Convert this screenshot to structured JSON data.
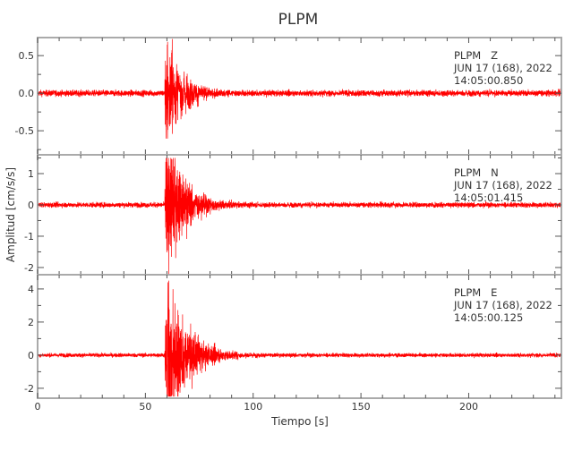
{
  "chart_data": {
    "type": "line",
    "title": "PLPM",
    "xlabel": "Tiempo [s]",
    "ylabel": "Amplitud [cm/s/s]",
    "xlim": [
      0,
      243
    ],
    "x_ticks": [
      0,
      50,
      100,
      150,
      200
    ],
    "x_tick_labels": [
      "0",
      "50",
      "100",
      "150",
      "200"
    ],
    "grid": false,
    "line_color": "#ff0000",
    "panels": [
      {
        "station": "PLPM",
        "component": "Z",
        "label_line1": "PLPM   Z",
        "label_line2": "JUN 17 (168), 2022",
        "label_line3": "14:05:00.850",
        "ylim": [
          -0.82,
          0.74
        ],
        "y_ticks": [
          0.5,
          0.0,
          -0.5
        ],
        "y_tick_labels": [
          "0.5",
          "0.0",
          "-0.5"
        ],
        "onset_s": 59,
        "peak_max": 0.73,
        "peak_min": -0.8,
        "noise_level": 0.02,
        "coda_end_s": 90
      },
      {
        "station": "PLPM",
        "component": "N",
        "label_line1": "PLPM   N",
        "label_line2": "JUN 17 (168), 2022",
        "label_line3": "14:05:01.415",
        "ylim": [
          -2.23,
          1.6
        ],
        "y_ticks": [
          1,
          0,
          -1,
          -2
        ],
        "y_tick_labels": [
          "1",
          "0",
          "-1",
          "-2"
        ],
        "onset_s": 59,
        "peak_max": 1.5,
        "peak_min": -2.2,
        "noise_level": 0.04,
        "coda_end_s": 95
      },
      {
        "station": "PLPM",
        "component": "E",
        "label_line1": "PLPM   E",
        "label_line2": "JUN 17 (168), 2022",
        "label_line3": "14:05:00.125",
        "ylim": [
          -2.6,
          4.86
        ],
        "y_ticks": [
          4,
          2,
          0,
          -2
        ],
        "y_tick_labels": [
          "4",
          "2",
          "0",
          "-2"
        ],
        "onset_s": 59,
        "peak_max": 4.5,
        "peak_min": -2.5,
        "noise_level": 0.06,
        "coda_end_s": 100
      }
    ]
  }
}
